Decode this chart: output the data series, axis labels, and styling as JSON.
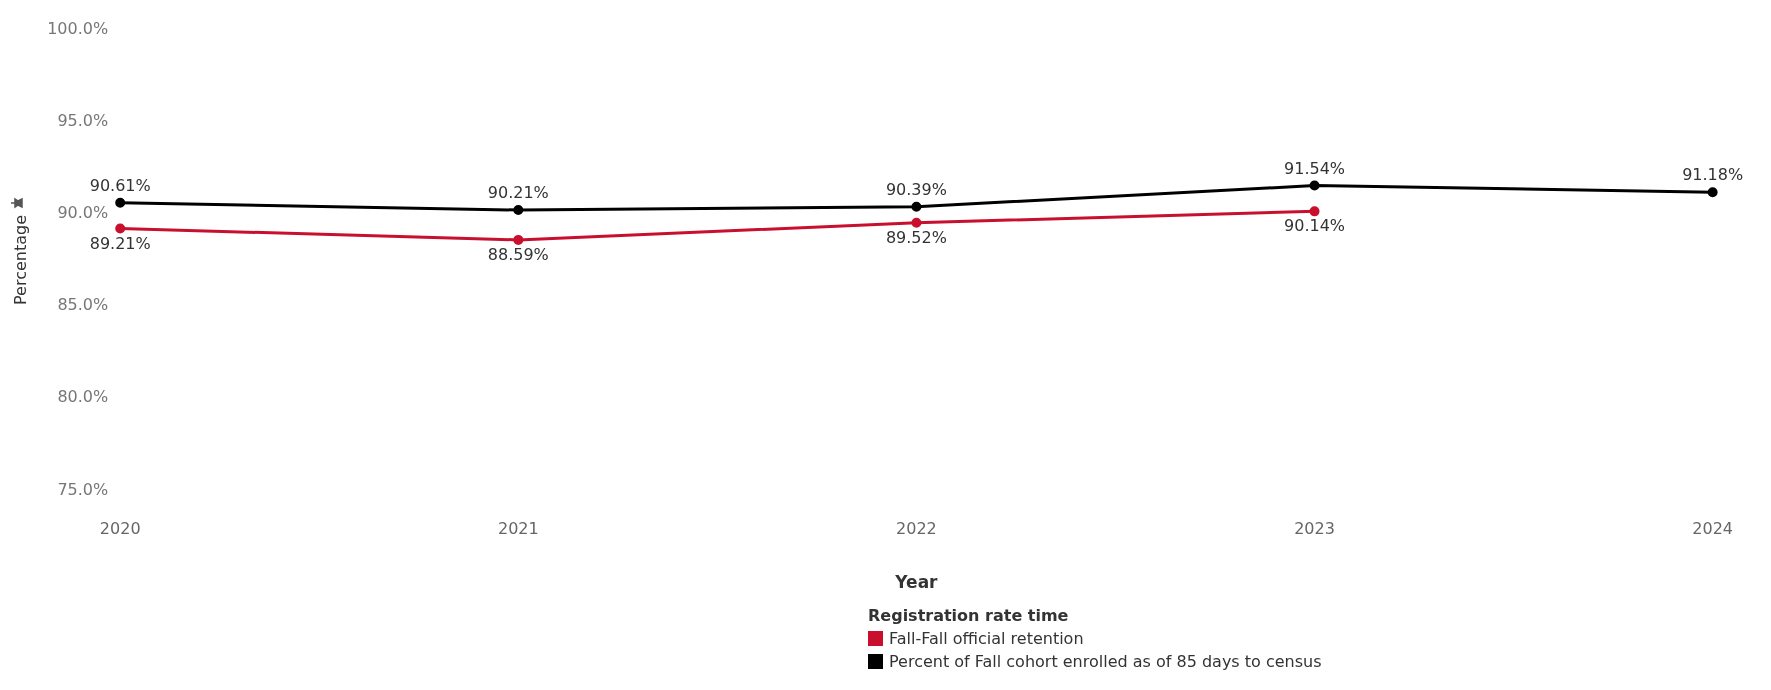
{
  "chart_data": {
    "type": "line",
    "xlabel": "Year",
    "ylabel": "Percentage",
    "legend_title": "Registration rate time",
    "legend": "bottom",
    "marker": "circle",
    "grid": false,
    "categories": [
      "2020",
      "2021",
      "2022",
      "2023",
      "2024"
    ],
    "ylim": [
      75,
      100
    ],
    "yticks": [
      {
        "value": 75,
        "label": "75.0%"
      },
      {
        "value": 80,
        "label": "80.0%"
      },
      {
        "value": 85,
        "label": "85.0%"
      },
      {
        "value": 90,
        "label": "90.0%"
      },
      {
        "value": 95,
        "label": "95.0%"
      },
      {
        "value": 100,
        "label": "100.0%"
      }
    ],
    "series": [
      {
        "name": "Fall-Fall official retention",
        "color": "#c8102e",
        "values": [
          89.21,
          88.59,
          89.52,
          90.14,
          null
        ],
        "value_labels": [
          "89.21%",
          "88.59%",
          "89.52%",
          "90.14%",
          null
        ]
      },
      {
        "name": "Percent of Fall cohort enrolled as of 85 days to census",
        "color": "#000000",
        "values": [
          90.61,
          90.21,
          90.39,
          91.54,
          91.18
        ],
        "value_labels": [
          "90.61%",
          "90.21%",
          "90.39%",
          "91.54%",
          "91.18%"
        ]
      }
    ]
  }
}
